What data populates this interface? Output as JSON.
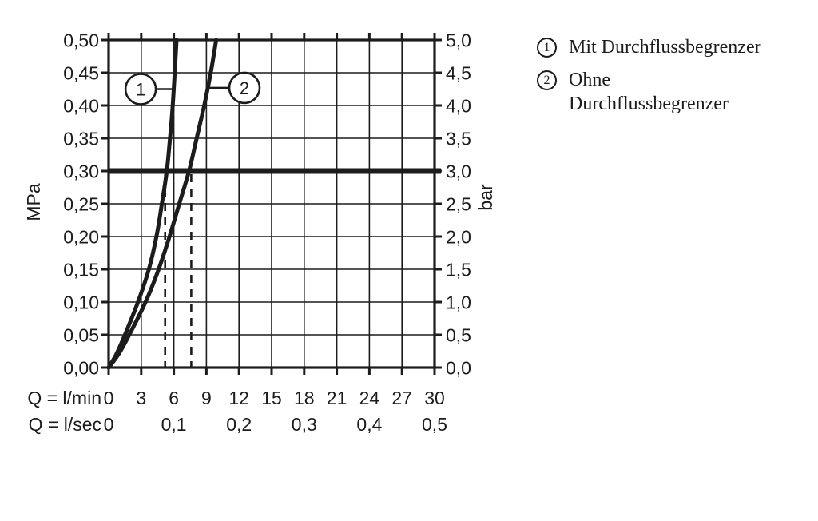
{
  "chart_data": {
    "type": "line",
    "title": "",
    "grid": true,
    "colors": {
      "ink": "#1c1c1c",
      "background": "#ffffff"
    },
    "y_axes": [
      {
        "side": "left",
        "label": "MPa",
        "range": [
          0,
          0.5
        ],
        "ticks": [
          "0,50",
          "0,45",
          "0,40",
          "0,35",
          "0,30",
          "0,25",
          "0,20",
          "0,15",
          "0,10",
          "0,05",
          "0,00"
        ]
      },
      {
        "side": "right",
        "label": "bar",
        "range": [
          0,
          5
        ],
        "ticks": [
          "5,0",
          "4,5",
          "4,0",
          "3,5",
          "3,0",
          "2,5",
          "2,0",
          "1,5",
          "1,0",
          "0,5",
          "0,0"
        ]
      }
    ],
    "x_axes": [
      {
        "label": "Q = l/min",
        "range": [
          0,
          30
        ],
        "ticks": [
          "0",
          "3",
          "6",
          "9",
          "12",
          "15",
          "18",
          "21",
          "24",
          "27",
          "30"
        ]
      },
      {
        "label": "Q = l/sec",
        "range": [
          0,
          0.5
        ],
        "ticks": [
          "0",
          "0,1",
          "0,2",
          "0,3",
          "0,4",
          "0,5"
        ]
      }
    ],
    "series": [
      {
        "name": "Mit Durchflussbegrenzer",
        "marker": "1",
        "points_q_lmin_vs_mpa": [
          [
            0,
            0
          ],
          [
            0.7,
            0.02
          ],
          [
            1.5,
            0.05
          ],
          [
            2.7,
            0.1
          ],
          [
            3.7,
            0.15
          ],
          [
            4.4,
            0.2
          ],
          [
            4.9,
            0.25
          ],
          [
            5.35,
            0.3
          ],
          [
            5.65,
            0.35
          ],
          [
            5.9,
            0.4
          ],
          [
            6.08,
            0.45
          ],
          [
            6.25,
            0.5
          ]
        ]
      },
      {
        "name": "Ohne Durchflussbegrenzer",
        "marker": "2",
        "points_q_lmin_vs_mpa": [
          [
            0,
            0
          ],
          [
            0.9,
            0.02
          ],
          [
            1.9,
            0.05
          ],
          [
            3.4,
            0.1
          ],
          [
            4.6,
            0.15
          ],
          [
            5.6,
            0.2
          ],
          [
            6.5,
            0.25
          ],
          [
            7.4,
            0.3
          ],
          [
            8.1,
            0.35
          ],
          [
            8.8,
            0.4
          ],
          [
            9.4,
            0.45
          ],
          [
            9.9,
            0.5
          ]
        ]
      }
    ],
    "reference_line": {
      "mpa": 0.3,
      "bar": 3.0
    },
    "dashed_verticals": [
      {
        "q_lmin": 5.2,
        "from_mpa": 0.3
      },
      {
        "q_lmin": 7.6,
        "from_mpa": 0.3
      }
    ],
    "callouts": [
      {
        "label": "1",
        "q_lmin": 2.95,
        "mpa": 0.425,
        "curve_side": "right"
      },
      {
        "label": "2",
        "q_lmin": 12.5,
        "mpa": 0.427,
        "curve_side": "left"
      }
    ]
  },
  "legend": {
    "items": [
      {
        "marker": "1",
        "lines": [
          "Mit Durchflussbegrenzer"
        ]
      },
      {
        "marker": "2",
        "lines": [
          "Ohne",
          "Durchflussbegrenzer"
        ]
      }
    ]
  }
}
